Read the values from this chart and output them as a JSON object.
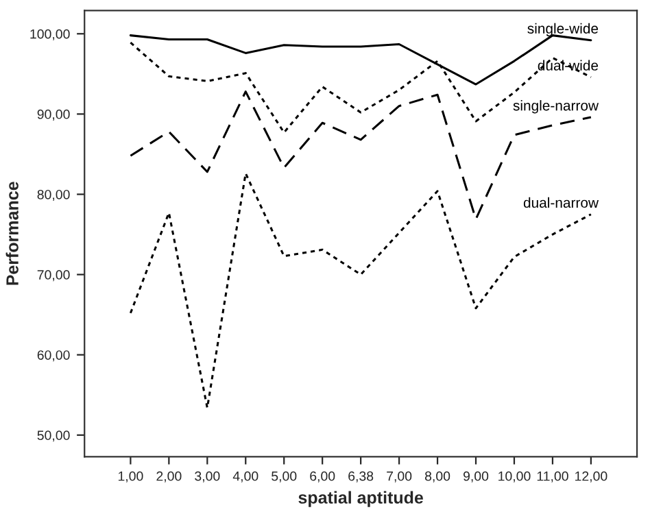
{
  "chart_data": {
    "type": "line",
    "xlabel": "spatial aptitude",
    "ylabel": "Performance",
    "categories": [
      "1,00",
      "2,00",
      "3,00",
      "4,00",
      "5,00",
      "6,00",
      "6,38",
      "7,00",
      "8,00",
      "9,00",
      "10,00",
      "11,00",
      "12,00"
    ],
    "ylim": [
      47.3,
      102.9
    ],
    "yticks": [
      {
        "value": 50,
        "label": "50,00"
      },
      {
        "value": 60,
        "label": "60,00"
      },
      {
        "value": 70,
        "label": "70,00"
      },
      {
        "value": 80,
        "label": "80,00"
      },
      {
        "value": 90,
        "label": "90,00"
      },
      {
        "value": 100,
        "label": "100,00"
      }
    ],
    "grid": false,
    "legend": false,
    "series": [
      {
        "name": "single-wide",
        "color": "#000000",
        "line_style": "solid",
        "values": [
          99.8,
          99.3,
          99.3,
          97.6,
          98.6,
          98.4,
          98.4,
          98.7,
          96.2,
          93.7,
          96.6,
          99.8,
          99.2
        ]
      },
      {
        "name": "dual-wide",
        "color": "#000000",
        "line_style": "dotted",
        "values": [
          98.9,
          94.7,
          94.1,
          95.1,
          87.7,
          93.4,
          90.2,
          93.0,
          96.6,
          89.1,
          92.7,
          97.0,
          94.6
        ]
      },
      {
        "name": "single-narrow",
        "color": "#000000",
        "line_style": "dashed",
        "values": [
          84.8,
          87.8,
          82.8,
          92.8,
          83.3,
          88.9,
          86.8,
          91.0,
          92.4,
          76.9,
          87.4,
          88.6,
          89.6
        ]
      },
      {
        "name": "dual-narrow",
        "color": "#000000",
        "line_style": "dotted",
        "values": [
          65.2,
          77.7,
          53.4,
          82.6,
          72.3,
          73.1,
          70.0,
          75.2,
          80.4,
          65.8,
          72.2,
          75.0,
          77.5
        ]
      }
    ]
  }
}
